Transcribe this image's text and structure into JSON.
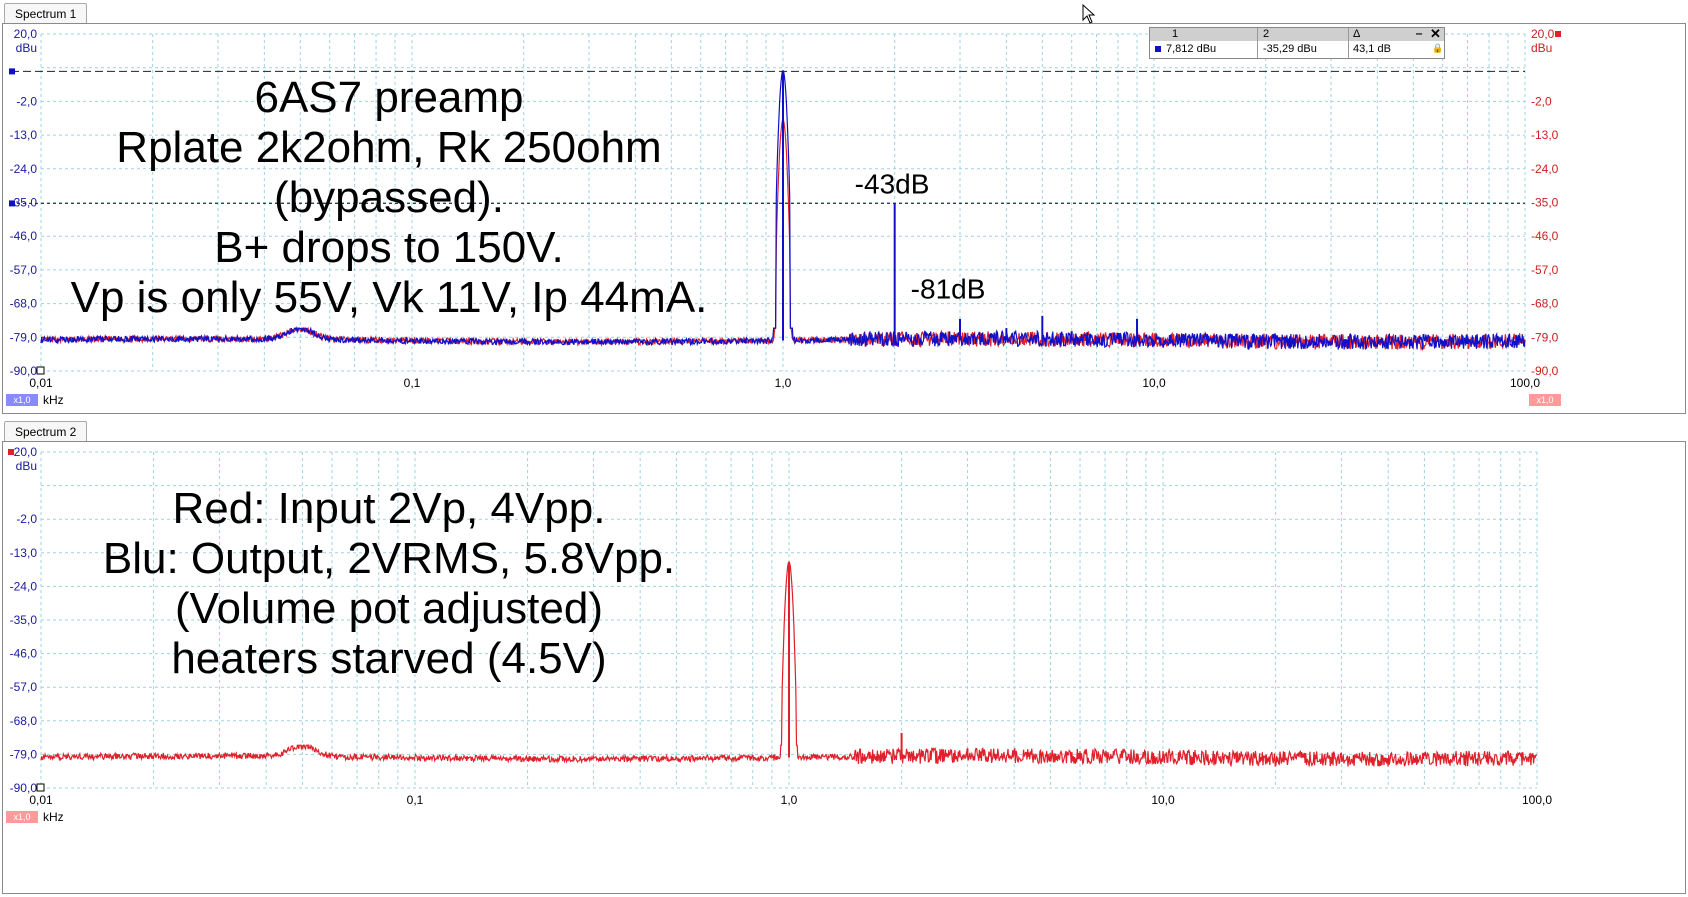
{
  "tabs": {
    "spectrum1": "Spectrum 1",
    "spectrum2": "Spectrum 2"
  },
  "colors": {
    "ch1": "#1010c8",
    "ch2": "#e0202a",
    "grid": "#9fd3e0",
    "axis_left": "#1a1aa0",
    "axis_right": "#cc2020"
  },
  "icons": {
    "cursor": "mouse-pointer-icon",
    "close": "close-icon",
    "minimize": "minimize-icon",
    "lock": "lock-icon"
  },
  "readout": {
    "col1_header": "1",
    "col2_header": "2",
    "col3_header": "Δ",
    "col1_value": "7,812 dBu",
    "col2_value": "-35,29 dBu",
    "col3_value": "43,1 dB"
  },
  "chart_data": [
    {
      "type": "line",
      "title": "",
      "xlabel": "kHz",
      "ylabel": "dBu",
      "xscale": "log",
      "xlim": [
        0.01,
        100
      ],
      "ylim": [
        -90,
        20
      ],
      "x_ticks": [
        "0,01",
        "0,1",
        "1,0",
        "10,0",
        "100,0"
      ],
      "y_ticks": [
        "20,0",
        "-2,0",
        "-13,0",
        "-24,0",
        "-35,0",
        "-46,0",
        "-57,0",
        "-68,0",
        "-79,0",
        "-90,0"
      ],
      "scale_badge_left": "x1,0",
      "scale_badge_right": "x1,0",
      "cursors": [
        {
          "y": 7.8
        },
        {
          "y": -35.3
        }
      ],
      "series": [
        {
          "color": "#1010c8",
          "peaks": [
            [
              1.0,
              8.0
            ],
            [
              2.0,
              -35.3
            ],
            [
              3.0,
              -73
            ],
            [
              4.0,
              -76
            ],
            [
              5.0,
              -72
            ],
            [
              6.0,
              -77
            ],
            [
              9.0,
              -73
            ]
          ]
        },
        {
          "color": "#e0202a",
          "peaks": [
            [
              1.0,
              -8.0
            ]
          ]
        }
      ],
      "noise_floor": -80,
      "annotations": [
        "-43dB",
        "-81dB"
      ],
      "text_block": [
        "6AS7 preamp",
        "Rplate 2k2ohm, Rk 250ohm",
        "(bypassed).",
        "B+ drops to 150V.",
        "Vp is only 55V, Vk 11V, Ip 44mA."
      ]
    },
    {
      "type": "line",
      "title": "",
      "xlabel": "kHz",
      "ylabel": "dBu",
      "xscale": "log",
      "xlim": [
        0.01,
        100
      ],
      "ylim": [
        -90,
        20
      ],
      "x_ticks": [
        "0,01",
        "0,1",
        "1,0",
        "10,0",
        "100,0"
      ],
      "y_ticks": [
        "20,0",
        "-2,0",
        "-13,0",
        "-24,0",
        "-35,0",
        "-46,0",
        "-57,0",
        "-68,0",
        "-79,0",
        "-90,0"
      ],
      "scale_badge_left": "x1,0",
      "series": [
        {
          "color": "#e0202a",
          "peaks": [
            [
              1.0,
              -16.0
            ],
            [
              2.0,
              -72
            ],
            [
              3.0,
              -77
            ]
          ]
        }
      ],
      "noise_floor": -80,
      "text_block": [
        "Red: Input 2Vp, 4Vpp.",
        "Blu: Output, 2VRMS, 5.8Vpp.",
        "(Volume pot adjusted)",
        "heaters starved (4.5V)"
      ]
    }
  ]
}
